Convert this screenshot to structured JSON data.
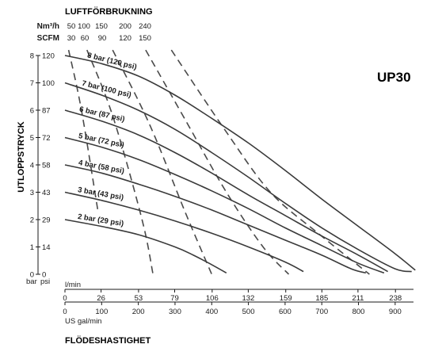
{
  "chart_data": {
    "type": "line",
    "title": "UP30",
    "header": {
      "title": "LUFTFÖRBRUKNING",
      "row1_label": "Nm³/h",
      "row1_ticks": [
        "50",
        "100",
        "150",
        "200",
        "240"
      ],
      "row2_label": "SCFM",
      "row2_ticks": [
        "30",
        "60",
        "90",
        "120",
        "150"
      ]
    },
    "ylabel": "UTLOPPSTRYCK",
    "y_unit_left": "bar",
    "y_unit_right": "psi",
    "y_ticks_bar": [
      "8",
      "7",
      "6",
      "5",
      "4",
      "3",
      "2",
      "1",
      "0"
    ],
    "y_ticks_psi": [
      "120",
      "100",
      "87",
      "72",
      "58",
      "43",
      "29",
      "14",
      "0"
    ],
    "ylim": [
      0,
      8
    ],
    "x_top_unit": "l/min",
    "x_top_ticks": [
      "0",
      "26",
      "53",
      "79",
      "106",
      "132",
      "159",
      "185",
      "211",
      "238"
    ],
    "x_bottom_unit": "US gal/min",
    "x_bottom_ticks": [
      "0",
      "100",
      "200",
      "300",
      "400",
      "500",
      "600",
      "700",
      "800",
      "900"
    ],
    "xlim": [
      0,
      950
    ],
    "xlabel": "FLÖDESHASTIGHET",
    "series": [
      {
        "name": "8 bar (120 psi)",
        "x": [
          0,
          100,
          200,
          300,
          400,
          500,
          600,
          700,
          800,
          900,
          955
        ],
        "y": [
          8.0,
          7.7,
          7.25,
          6.55,
          5.7,
          4.8,
          3.8,
          2.75,
          1.75,
          0.75,
          0.15
        ]
      },
      {
        "name": "7 bar (100 psi)",
        "x": [
          0,
          100,
          200,
          300,
          400,
          500,
          600,
          700,
          800,
          900,
          945
        ],
        "y": [
          7.0,
          6.55,
          6.0,
          5.3,
          4.45,
          3.55,
          2.6,
          1.7,
          0.9,
          0.2,
          0.1
        ]
      },
      {
        "name": "6 bar (87 psi)",
        "x": [
          0,
          100,
          200,
          300,
          400,
          500,
          600,
          700,
          800,
          880
        ],
        "y": [
          6.0,
          5.6,
          5.1,
          4.45,
          3.7,
          2.9,
          2.15,
          1.4,
          0.7,
          0.1
        ]
      },
      {
        "name": "5 bar (72 psi)",
        "x": [
          0,
          100,
          200,
          300,
          400,
          500,
          600,
          700,
          800,
          870
        ],
        "y": [
          5.0,
          4.65,
          4.2,
          3.65,
          3.05,
          2.4,
          1.7,
          1.05,
          0.4,
          0.05
        ]
      },
      {
        "name": "4 bar (58 psi)",
        "x": [
          0,
          100,
          200,
          300,
          400,
          500,
          600,
          700,
          780,
          820
        ],
        "y": [
          4.0,
          3.7,
          3.3,
          2.85,
          2.35,
          1.8,
          1.25,
          0.7,
          0.2,
          0.05
        ]
      },
      {
        "name": "3 bar (43 psi)",
        "x": [
          0,
          100,
          200,
          300,
          400,
          500,
          600,
          650
        ],
        "y": [
          3.0,
          2.7,
          2.35,
          1.95,
          1.5,
          1.0,
          0.45,
          0.1
        ]
      },
      {
        "name": "2 bar (29 psi)",
        "x": [
          0,
          100,
          200,
          300,
          350,
          400,
          440
        ],
        "y": [
          2.0,
          1.75,
          1.45,
          1.0,
          0.7,
          0.35,
          0.05
        ]
      }
    ],
    "air_consumption_curves": [
      {
        "x": [
          10,
          45,
          90
        ],
        "y": [
          8.2,
          6.0,
          2.3
        ]
      },
      {
        "x": [
          60,
          130,
          210,
          240
        ],
        "y": [
          8.2,
          5.8,
          2.0,
          0.0
        ]
      },
      {
        "x": [
          130,
          230,
          330,
          400
        ],
        "y": [
          8.2,
          5.5,
          2.2,
          0.0
        ]
      },
      {
        "x": [
          220,
          330,
          440,
          540,
          610
        ],
        "y": [
          8.2,
          5.6,
          3.0,
          1.0,
          0.0
        ]
      },
      {
        "x": [
          290,
          440,
          560,
          690,
          830
        ],
        "y": [
          8.2,
          5.2,
          3.0,
          1.5,
          0.0
        ]
      }
    ],
    "colors": {
      "pressure_line": "#3a3a3a",
      "air_line": "#4a4a4a"
    },
    "grid": false,
    "legend": "none"
  }
}
